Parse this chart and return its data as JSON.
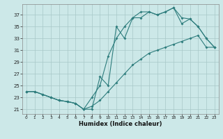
{
  "xlabel": "Humidex (Indice chaleur)",
  "background_color": "#cce8e8",
  "line_color": "#2e7d7d",
  "grid_color": "#a8c8c8",
  "xlim": [
    -0.5,
    23.5
  ],
  "ylim": [
    20.2,
    38.8
  ],
  "yticks": [
    21,
    23,
    25,
    27,
    29,
    31,
    33,
    35,
    37
  ],
  "xticks": [
    0,
    1,
    2,
    3,
    4,
    5,
    6,
    7,
    8,
    9,
    10,
    11,
    12,
    13,
    14,
    15,
    16,
    17,
    18,
    19,
    20,
    21,
    22,
    23
  ],
  "line1_x": [
    0,
    1,
    2,
    3,
    4,
    5,
    6,
    7,
    8,
    9,
    10,
    11,
    12,
    13,
    14,
    15,
    16,
    17,
    18,
    19,
    20,
    21,
    22,
    23
  ],
  "line1_y": [
    24.0,
    24.0,
    23.5,
    23.0,
    22.5,
    22.3,
    22.0,
    21.0,
    21.0,
    26.5,
    25.0,
    35.0,
    33.0,
    36.5,
    36.5,
    37.5,
    37.0,
    37.5,
    38.2,
    35.5,
    36.3,
    35.0,
    33.0,
    31.5
  ],
  "line2_x": [
    0,
    1,
    2,
    3,
    4,
    5,
    6,
    7,
    8,
    9,
    10,
    11,
    12,
    13,
    14,
    15,
    16,
    17,
    18,
    19,
    20,
    21,
    22,
    23
  ],
  "line2_y": [
    24.0,
    24.0,
    23.5,
    23.0,
    22.5,
    22.3,
    22.0,
    21.0,
    23.0,
    25.0,
    30.0,
    33.0,
    35.0,
    36.5,
    37.5,
    37.5,
    37.0,
    37.5,
    38.2,
    36.5,
    36.3,
    35.0,
    33.0,
    31.5
  ],
  "line3_x": [
    0,
    1,
    2,
    3,
    4,
    5,
    6,
    7,
    8,
    9,
    10,
    11,
    12,
    13,
    14,
    15,
    16,
    17,
    18,
    19,
    20,
    21,
    22,
    23
  ],
  "line3_y": [
    24.0,
    24.0,
    23.5,
    23.0,
    22.5,
    22.3,
    22.0,
    21.0,
    21.5,
    22.5,
    24.0,
    25.5,
    27.0,
    28.5,
    29.5,
    30.5,
    31.0,
    31.5,
    32.0,
    32.5,
    33.0,
    33.5,
    31.5,
    31.5
  ]
}
